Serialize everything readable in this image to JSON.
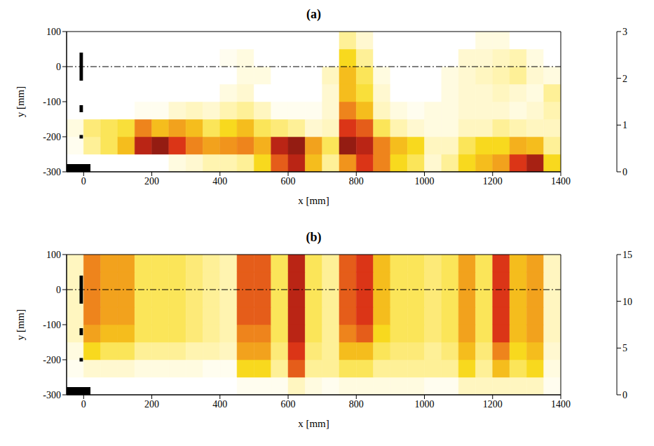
{
  "chart_data": [
    {
      "type": "heatmap",
      "title": "(a)",
      "x_label": "x [mm]",
      "y_label": "y [mm]",
      "xlim": [
        -50,
        1400
      ],
      "ylim": [
        -300,
        100
      ],
      "xticks": [
        0,
        200,
        400,
        600,
        800,
        1000,
        1200,
        1400
      ],
      "yticks": [
        -300,
        -200,
        -100,
        0,
        100
      ],
      "x_bins": [
        -50,
        0,
        50,
        100,
        150,
        200,
        250,
        300,
        350,
        400,
        450,
        500,
        550,
        600,
        650,
        700,
        750,
        800,
        850,
        900,
        950,
        1000,
        1050,
        1100,
        1150,
        1200,
        1250,
        1300,
        1350,
        1400
      ],
      "y_bins": [
        -300,
        -250,
        -200,
        -150,
        -100,
        -50,
        0,
        50,
        100
      ],
      "cells": [
        [
          0,
          0,
          0,
          0,
          0,
          0,
          0.2,
          0.3,
          0.5,
          0.5,
          0.6,
          1.0,
          1.8,
          2.2,
          1.2,
          0.6,
          1.5,
          2.0,
          1.6,
          1.0,
          0.8,
          0.3,
          0.6,
          1.0,
          1.2,
          1.4,
          2.0,
          2.3,
          1.0
        ],
        [
          0.1,
          0.6,
          0.8,
          1.2,
          2.2,
          2.4,
          2.0,
          1.6,
          1.4,
          1.5,
          1.6,
          1.3,
          2.2,
          2.4,
          1.4,
          0.8,
          2.4,
          2.2,
          1.6,
          1.2,
          1.0,
          0.4,
          0.4,
          0.8,
          1.0,
          1.0,
          1.3,
          1.2,
          0.6
        ],
        [
          0.2,
          0.7,
          0.8,
          0.9,
          1.6,
          1.2,
          1.4,
          1.2,
          0.8,
          1.0,
          1.2,
          0.8,
          0.7,
          0.6,
          0.3,
          0.4,
          2.0,
          1.8,
          0.8,
          0.5,
          0.3,
          0.2,
          0.2,
          0.4,
          0.4,
          0.6,
          0.5,
          0.4,
          0.4
        ],
        [
          0,
          0,
          0,
          0,
          0.1,
          0.1,
          0.3,
          0.4,
          0.3,
          0.5,
          0.6,
          0.4,
          0.1,
          0.1,
          0.1,
          0.3,
          1.6,
          1.2,
          0.4,
          0.2,
          0.1,
          0.2,
          0.2,
          0.3,
          0.3,
          0.3,
          0.2,
          0.3,
          0.5
        ],
        [
          0,
          0,
          0,
          0,
          0,
          0,
          0,
          0,
          0,
          0.2,
          0.3,
          0,
          0,
          0,
          0,
          0.3,
          1.2,
          0.9,
          0.3,
          0,
          0,
          0,
          0.2,
          0.3,
          0.3,
          0.4,
          0.3,
          0.2,
          0.6
        ],
        [
          0,
          0,
          0,
          0,
          0,
          0,
          0,
          0,
          0,
          0,
          0.2,
          0.2,
          0,
          0,
          0,
          0.4,
          1.2,
          0.8,
          0.2,
          0,
          0,
          0,
          0.2,
          0.3,
          0.4,
          0.5,
          0.6,
          0.3,
          0.2
        ],
        [
          0,
          0,
          0,
          0,
          0,
          0,
          0,
          0,
          0,
          0.1,
          0.2,
          0,
          0,
          0,
          0,
          0,
          1.0,
          0.6,
          0,
          0,
          0,
          0,
          0,
          0.3,
          0.3,
          0.4,
          0.5,
          0.2,
          0
        ],
        [
          0,
          0,
          0,
          0,
          0,
          0,
          0,
          0,
          0,
          0,
          0,
          0,
          0,
          0,
          0,
          0,
          0.6,
          0.3,
          0,
          0,
          0,
          0,
          0,
          0,
          0.2,
          0.2,
          0,
          0,
          0
        ]
      ],
      "colorbar_range": [
        0,
        3
      ],
      "colorbar_ticks": [
        0,
        1,
        2,
        3
      ],
      "centerline_y": 0,
      "bodies": [
        {
          "x": [
            -12,
            -2
          ],
          "y": [
            -40,
            40
          ]
        },
        {
          "x": [
            -12,
            -2
          ],
          "y": [
            -130,
            -110
          ]
        },
        {
          "x": [
            -12,
            -2
          ],
          "y": [
            -205,
            -195
          ]
        },
        {
          "x": [
            -50,
            20
          ],
          "y": [
            -300,
            -278
          ]
        }
      ]
    },
    {
      "type": "heatmap",
      "title": "(b)",
      "x_label": "x [mm]",
      "y_label": "y [mm]",
      "xlim": [
        -50,
        1400
      ],
      "ylim": [
        -300,
        100
      ],
      "xticks": [
        0,
        200,
        400,
        600,
        800,
        1000,
        1200,
        1400
      ],
      "yticks": [
        -300,
        -200,
        -100,
        0,
        100
      ],
      "x_bins": [
        -50,
        0,
        50,
        100,
        150,
        200,
        250,
        300,
        350,
        400,
        450,
        500,
        550,
        600,
        650,
        700,
        750,
        800,
        850,
        900,
        950,
        1000,
        1050,
        1100,
        1150,
        1200,
        1250,
        1300,
        1350,
        1400
      ],
      "y_bins": [
        -300,
        -250,
        -200,
        -150,
        -100,
        -50,
        0,
        50,
        100
      ],
      "cells": [
        [
          0,
          0,
          0,
          0,
          0,
          0,
          0,
          0,
          0,
          0,
          0.5,
          0.5,
          0.5,
          2,
          1,
          0.5,
          1,
          1,
          1,
          1,
          1,
          0.5,
          0.5,
          2,
          2,
          2,
          2,
          2,
          0.5
        ],
        [
          0.5,
          1.5,
          1.5,
          1.5,
          1,
          1,
          1,
          1,
          0.5,
          0.5,
          5,
          5,
          3,
          9,
          3,
          3,
          4,
          4,
          3,
          3,
          3,
          3,
          3,
          5,
          3,
          6,
          4,
          5,
          1
        ],
        [
          1,
          5,
          4,
          4,
          3,
          3,
          3,
          2.5,
          2.5,
          2,
          7,
          7,
          3.5,
          10,
          3.5,
          3,
          6,
          6,
          4,
          3.5,
          3.5,
          3,
          3.5,
          6,
          3.5,
          8,
          5,
          6,
          1.5
        ],
        [
          2,
          7,
          6,
          6,
          4,
          4,
          4,
          3.5,
          3,
          2.5,
          8,
          8,
          4,
          11,
          4,
          3,
          8,
          9,
          5,
          4,
          4,
          3.5,
          4,
          7,
          4,
          10,
          6,
          7,
          2
        ],
        [
          2,
          8,
          7,
          7,
          4,
          4,
          4,
          3.5,
          3,
          2.5,
          9,
          9,
          4,
          11,
          4,
          3,
          9,
          10,
          6,
          4,
          4,
          3.5,
          4,
          7,
          4,
          10,
          6,
          7,
          2
        ],
        [
          2,
          8,
          7,
          7,
          4,
          4,
          4,
          3.5,
          3,
          2.5,
          9,
          9,
          4,
          11,
          4,
          3,
          9,
          10,
          6,
          4,
          4,
          3.5,
          4,
          7,
          4,
          10,
          6,
          7,
          2
        ],
        [
          2,
          8,
          7,
          7,
          4,
          4,
          4,
          3.5,
          3,
          2.5,
          9,
          9,
          4,
          11,
          4,
          3,
          9,
          10,
          6,
          4,
          4,
          3.5,
          4,
          7,
          4,
          10,
          6,
          7,
          2
        ],
        [
          2,
          8,
          7,
          7,
          4,
          4,
          4,
          3.5,
          3,
          2.5,
          9,
          9,
          4,
          11,
          4,
          3,
          9,
          10,
          6,
          4,
          4,
          3.5,
          4,
          7,
          4,
          10,
          6,
          7,
          2
        ]
      ],
      "colorbar_range": [
        0,
        15
      ],
      "colorbar_ticks": [
        0,
        5,
        10,
        15
      ],
      "centerline_y": 0,
      "bodies": [
        {
          "x": [
            -12,
            -2
          ],
          "y": [
            -40,
            40
          ]
        },
        {
          "x": [
            -12,
            -2
          ],
          "y": [
            -130,
            -110
          ]
        },
        {
          "x": [
            -12,
            -2
          ],
          "y": [
            -205,
            -195
          ]
        },
        {
          "x": [
            -50,
            20
          ],
          "y": [
            -300,
            -278
          ]
        }
      ]
    }
  ]
}
